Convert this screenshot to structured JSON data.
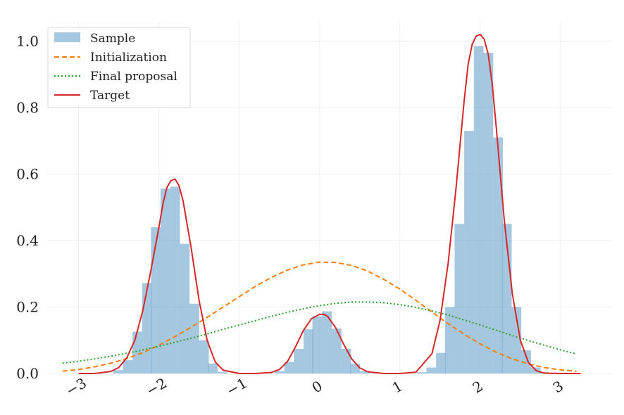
{
  "chart_data": {
    "type": "histogram-line",
    "title": "",
    "xlabel": "",
    "ylabel": "",
    "xlim": [
      -3.4,
      3.65
    ],
    "ylim": [
      0.0,
      1.06
    ],
    "grid": true,
    "legend_placement": "top-left",
    "x_ticks": [
      -3,
      -2,
      -1,
      0,
      1,
      2,
      3
    ],
    "x_tick_labels": [
      "−3",
      "−2",
      "−1",
      "0",
      "1",
      "2",
      "3"
    ],
    "y_ticks": [
      0.0,
      0.2,
      0.4,
      0.6,
      0.8,
      1.0
    ],
    "y_tick_labels": [
      "0.0",
      "0.2",
      "0.4",
      "0.6",
      "0.8",
      "1.0"
    ],
    "colors": {
      "sample": "#7fafd3",
      "initialization": "#ff7f0e",
      "final_proposal": "#2ca02c",
      "target": "#d62728",
      "grid": "#efefef"
    },
    "legend": [
      {
        "label": "Sample",
        "style": "patch",
        "color": "#7fafd3"
      },
      {
        "label": "Initialization",
        "style": "dashed",
        "color": "#ff7f0e"
      },
      {
        "label": "Final proposal",
        "style": "dotted",
        "color": "#2ca02c"
      },
      {
        "label": "Target",
        "style": "solid",
        "color": "#d62728"
      }
    ],
    "series": [
      {
        "name": "Sample",
        "kind": "histogram",
        "bin_width": 0.118,
        "bins": [
          [
            -2.51,
            0.01
          ],
          [
            -2.39,
            0.04
          ],
          [
            -2.27,
            0.126
          ],
          [
            -2.15,
            0.272
          ],
          [
            -2.04,
            0.44
          ],
          [
            -1.92,
            0.556
          ],
          [
            -1.8,
            0.562
          ],
          [
            -1.68,
            0.39
          ],
          [
            -1.56,
            0.21
          ],
          [
            -1.44,
            0.1
          ],
          [
            -1.33,
            0.03
          ],
          [
            -1.21,
            0.005
          ],
          [
            -0.5,
            0.007
          ],
          [
            -0.38,
            0.035
          ],
          [
            -0.26,
            0.074
          ],
          [
            -0.14,
            0.133
          ],
          [
            -0.03,
            0.172
          ],
          [
            0.09,
            0.187
          ],
          [
            0.21,
            0.135
          ],
          [
            0.33,
            0.074
          ],
          [
            0.44,
            0.03
          ],
          [
            0.56,
            0.007
          ],
          [
            1.27,
            0.004
          ],
          [
            1.39,
            0.018
          ],
          [
            1.51,
            0.062
          ],
          [
            1.62,
            0.2
          ],
          [
            1.74,
            0.45
          ],
          [
            1.86,
            0.73
          ],
          [
            1.98,
            0.985
          ],
          [
            2.1,
            0.965
          ],
          [
            2.22,
            0.71
          ],
          [
            2.33,
            0.45
          ],
          [
            2.45,
            0.2
          ],
          [
            2.57,
            0.07
          ],
          [
            2.69,
            0.018
          ],
          [
            2.8,
            0.004
          ]
        ]
      },
      {
        "name": "Initialization",
        "kind": "line",
        "x": [
          -3.2,
          -3.0,
          -2.8,
          -2.6,
          -2.4,
          -2.2,
          -2.0,
          -1.8,
          -1.6,
          -1.4,
          -1.2,
          -1.0,
          -0.8,
          -0.6,
          -0.4,
          -0.2,
          0.0,
          0.2,
          0.4,
          0.6,
          0.8,
          1.0,
          1.2,
          1.4,
          1.6,
          1.8,
          2.0,
          2.2,
          2.4,
          2.6,
          2.8,
          3.0,
          3.2
        ],
        "y": [
          0.007,
          0.012,
          0.02,
          0.031,
          0.045,
          0.063,
          0.085,
          0.111,
          0.139,
          0.169,
          0.2,
          0.231,
          0.262,
          0.289,
          0.311,
          0.327,
          0.335,
          0.334,
          0.325,
          0.308,
          0.283,
          0.254,
          0.22,
          0.185,
          0.15,
          0.118,
          0.089,
          0.064,
          0.044,
          0.029,
          0.018,
          0.011,
          0.007
        ]
      },
      {
        "name": "Final proposal",
        "kind": "line",
        "x": [
          -3.2,
          -3.0,
          -2.8,
          -2.6,
          -2.4,
          -2.2,
          -2.0,
          -1.8,
          -1.6,
          -1.4,
          -1.2,
          -1.0,
          -0.8,
          -0.6,
          -0.4,
          -0.2,
          0.0,
          0.2,
          0.4,
          0.6,
          0.8,
          1.0,
          1.2,
          1.4,
          1.6,
          1.8,
          2.0,
          2.2,
          2.4,
          2.6,
          2.8,
          3.0,
          3.2
        ],
        "y": [
          0.031,
          0.037,
          0.044,
          0.052,
          0.061,
          0.071,
          0.082,
          0.094,
          0.106,
          0.119,
          0.133,
          0.146,
          0.159,
          0.172,
          0.184,
          0.195,
          0.204,
          0.211,
          0.215,
          0.215,
          0.213,
          0.207,
          0.199,
          0.188,
          0.176,
          0.161,
          0.146,
          0.13,
          0.114,
          0.099,
          0.085,
          0.071,
          0.059
        ]
      },
      {
        "name": "Target",
        "kind": "line",
        "x": [
          -3.0,
          -2.8,
          -2.6,
          -2.5,
          -2.4,
          -2.3,
          -2.2,
          -2.1,
          -2.0,
          -1.95,
          -1.9,
          -1.85,
          -1.8,
          -1.75,
          -1.7,
          -1.6,
          -1.5,
          -1.4,
          -1.3,
          -1.2,
          -1.0,
          -0.8,
          -0.6,
          -0.5,
          -0.4,
          -0.3,
          -0.2,
          -0.1,
          0.0,
          0.05,
          0.1,
          0.2,
          0.3,
          0.4,
          0.5,
          0.6,
          0.8,
          1.0,
          1.2,
          1.4,
          1.5,
          1.6,
          1.7,
          1.8,
          1.85,
          1.9,
          1.95,
          2.0,
          2.05,
          2.1,
          2.15,
          2.2,
          2.25,
          2.3,
          2.4,
          2.5,
          2.6,
          2.7,
          2.8,
          3.0,
          3.25
        ],
        "y": [
          0.0,
          0.0,
          0.006,
          0.018,
          0.047,
          0.1,
          0.19,
          0.31,
          0.44,
          0.51,
          0.56,
          0.58,
          0.585,
          0.565,
          0.52,
          0.38,
          0.22,
          0.1,
          0.035,
          0.01,
          0.0,
          0.0,
          0.003,
          0.012,
          0.036,
          0.08,
          0.13,
          0.165,
          0.178,
          0.178,
          0.172,
          0.138,
          0.088,
          0.044,
          0.017,
          0.005,
          0.0,
          0.0,
          0.004,
          0.06,
          0.16,
          0.33,
          0.56,
          0.82,
          0.93,
          0.99,
          1.015,
          1.02,
          1.005,
          0.96,
          0.87,
          0.74,
          0.6,
          0.46,
          0.24,
          0.1,
          0.033,
          0.008,
          0.001,
          0.0,
          0.0
        ]
      }
    ]
  }
}
